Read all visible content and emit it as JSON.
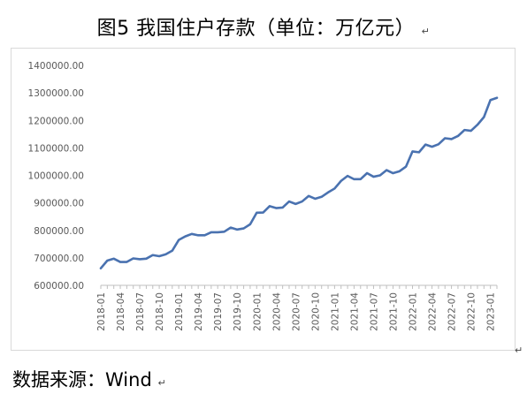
{
  "title": "图5 我国住户存款（单位：万亿元）",
  "source": "数据来源：Wind",
  "paragraph_mark": "↵",
  "colors": {
    "line": "#4a72b0",
    "axis": "#bfbfbf",
    "text": "#595959"
  },
  "chart_data": {
    "type": "line",
    "title": "图5 我国住户存款（单位：万亿元）",
    "xlabel": "",
    "ylabel": "",
    "ylim": [
      600000,
      1400000
    ],
    "yticks": [
      600000,
      700000,
      800000,
      900000,
      1000000,
      1100000,
      1200000,
      1300000,
      1400000
    ],
    "ytick_labels": [
      "600000.00",
      "700000.00",
      "800000.00",
      "900000.00",
      "1000000.00",
      "1100000.00",
      "1200000.00",
      "1300000.00",
      "1400000.00"
    ],
    "grid": false,
    "legend": "none",
    "x": [
      "2018-01",
      "2018-02",
      "2018-03",
      "2018-04",
      "2018-05",
      "2018-06",
      "2018-07",
      "2018-08",
      "2018-09",
      "2018-10",
      "2018-11",
      "2018-12",
      "2019-01",
      "2019-02",
      "2019-03",
      "2019-04",
      "2019-05",
      "2019-06",
      "2019-07",
      "2019-08",
      "2019-09",
      "2019-10",
      "2019-11",
      "2019-12",
      "2020-01",
      "2020-02",
      "2020-03",
      "2020-04",
      "2020-05",
      "2020-06",
      "2020-07",
      "2020-08",
      "2020-09",
      "2020-10",
      "2020-11",
      "2020-12",
      "2021-01",
      "2021-02",
      "2021-03",
      "2021-04",
      "2021-05",
      "2021-06",
      "2021-07",
      "2021-08",
      "2021-09",
      "2021-10",
      "2021-11",
      "2021-12",
      "2022-01",
      "2022-02",
      "2022-03",
      "2022-04",
      "2022-05",
      "2022-06",
      "2022-07",
      "2022-08",
      "2022-09",
      "2022-10",
      "2022-11",
      "2022-12",
      "2023-01",
      "2023-02"
    ],
    "x_tick_labels": [
      "2018-01",
      "2018-04",
      "2018-07",
      "2018-10",
      "2019-01",
      "2019-04",
      "2019-07",
      "2019-10",
      "2020-01",
      "2020-04",
      "2020-07",
      "2020-10",
      "2021-01",
      "2021-04",
      "2021-07",
      "2021-10",
      "2022-01",
      "2022-04",
      "2022-07",
      "2022-10",
      "2023-01"
    ],
    "series": [
      {
        "values": [
          662000,
          690000,
          697000,
          685000,
          685000,
          698000,
          695000,
          697000,
          710000,
          706000,
          713000,
          726000,
          765000,
          778000,
          787000,
          782000,
          782000,
          793000,
          793000,
          795000,
          810000,
          803000,
          807000,
          822000,
          864000,
          865000,
          888000,
          881000,
          883000,
          905000,
          896000,
          905000,
          925000,
          915000,
          922000,
          938000,
          952000,
          980000,
          998000,
          986000,
          986000,
          1008000,
          995000,
          1000000,
          1019000,
          1008000,
          1015000,
          1032000,
          1087000,
          1084000,
          1112000,
          1104000,
          1113000,
          1135000,
          1132000,
          1143000,
          1165000,
          1162000,
          1184000,
          1212000,
          1274000,
          1282000
        ]
      }
    ]
  }
}
